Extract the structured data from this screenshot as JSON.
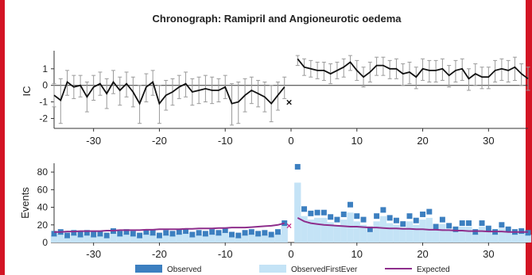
{
  "chart_data": [
    {
      "type": "line",
      "title": "Chronograph: Ramipril and Angioneurotic oedema",
      "ylabel": "IC",
      "xlim": [
        -36,
        36
      ],
      "ylim": [
        -2.6,
        1.9
      ],
      "yticks": [
        1,
        0,
        -1,
        -2
      ],
      "xticks": [
        -30,
        -20,
        -10,
        0,
        10,
        20,
        30
      ],
      "grid": false,
      "error_bars": true,
      "markers": [
        {
          "x": -0.3,
          "y": -1.0,
          "symbol": "×"
        }
      ],
      "series": [
        {
          "x": [
            -36,
            -35,
            -34,
            -33,
            -32,
            -31,
            -30,
            -29,
            -28,
            -27,
            -26,
            -25,
            -24,
            -23,
            -22,
            -21,
            -20,
            -19,
            -18,
            -17,
            -16,
            -15,
            -14,
            -13,
            -12,
            -11,
            -10,
            -9,
            -8,
            -7,
            -6,
            -5,
            -4,
            -3,
            -2,
            -1
          ],
          "values": [
            -0.6,
            -0.9,
            0.2,
            -0.1,
            0.0,
            -0.7,
            -0.1,
            0.1,
            -0.5,
            0.2,
            -0.3,
            0.1,
            -0.4,
            -1.1,
            -0.1,
            0.2,
            -1.1,
            -0.6,
            -0.4,
            -0.1,
            0.1,
            -0.4,
            -0.3,
            -0.2,
            -0.3,
            -0.3,
            -0.1,
            -1.1,
            -1.0,
            -0.6,
            -0.3,
            -0.5,
            -0.7,
            -1.1,
            -0.6,
            -0.1
          ],
          "lower": [
            -1.3,
            -2.3,
            -0.6,
            -0.8,
            -0.7,
            -1.6,
            -0.9,
            -0.6,
            -1.4,
            -0.5,
            -1.2,
            -0.7,
            -1.3,
            -2.3,
            -1.0,
            -0.6,
            -2.3,
            -1.5,
            -1.2,
            -0.8,
            -0.7,
            -1.2,
            -1.1,
            -1.0,
            -1.1,
            -1.0,
            -0.8,
            -2.4,
            -2.3,
            -1.6,
            -1.1,
            -1.3,
            -1.6,
            -2.2,
            -1.5,
            -0.8
          ],
          "upper": [
            0.1,
            0.4,
            0.9,
            0.6,
            0.6,
            0.2,
            0.6,
            0.8,
            0.4,
            0.9,
            0.5,
            0.8,
            0.5,
            0.0,
            0.7,
            0.9,
            0.0,
            0.3,
            0.4,
            0.6,
            0.8,
            0.4,
            0.5,
            0.6,
            0.5,
            0.4,
            0.6,
            0.1,
            0.2,
            0.4,
            0.5,
            0.3,
            0.2,
            0.0,
            0.2,
            0.5
          ]
        },
        {
          "x": [
            1,
            2,
            3,
            4,
            5,
            6,
            7,
            8,
            9,
            10,
            11,
            12,
            13,
            14,
            15,
            16,
            17,
            18,
            19,
            20,
            21,
            22,
            23,
            24,
            25,
            26,
            27,
            28,
            29,
            30,
            31,
            32,
            33,
            34,
            35,
            36
          ],
          "values": [
            1.6,
            1.1,
            1.0,
            0.9,
            0.9,
            0.7,
            0.9,
            1.1,
            1.4,
            0.9,
            0.5,
            0.8,
            1.2,
            1.2,
            1.0,
            1.0,
            0.7,
            0.8,
            0.5,
            1.0,
            0.9,
            0.9,
            1.0,
            0.6,
            0.9,
            1.0,
            0.4,
            0.7,
            0.5,
            0.5,
            0.9,
            1.0,
            0.9,
            1.1,
            0.7,
            0.4
          ],
          "lower": [
            1.2,
            0.6,
            0.5,
            0.4,
            0.3,
            0.1,
            0.4,
            0.5,
            0.9,
            0.3,
            -0.1,
            0.2,
            0.6,
            0.6,
            0.4,
            0.4,
            0.0,
            0.1,
            -0.2,
            0.3,
            0.2,
            0.2,
            0.3,
            -0.1,
            0.2,
            0.3,
            -0.3,
            0.0,
            -0.2,
            -0.2,
            0.2,
            0.3,
            0.2,
            0.3,
            0.0,
            -0.3
          ],
          "upper": [
            1.8,
            1.6,
            1.5,
            1.4,
            1.4,
            1.3,
            1.4,
            1.6,
            1.8,
            1.5,
            1.1,
            1.4,
            1.7,
            1.7,
            1.5,
            1.6,
            1.3,
            1.4,
            1.1,
            1.6,
            1.5,
            1.5,
            1.6,
            1.2,
            1.5,
            1.6,
            1.0,
            1.3,
            1.1,
            1.1,
            1.5,
            1.6,
            1.5,
            1.7,
            1.3,
            1.1
          ]
        }
      ]
    },
    {
      "type": "bar",
      "ylabel": "Events",
      "xlim": [
        -36,
        36
      ],
      "ylim": [
        0,
        90
      ],
      "yticks": [
        0,
        20,
        40,
        60,
        80
      ],
      "xticks": [
        -30,
        -20,
        -10,
        0,
        10,
        20,
        30
      ],
      "grid": false,
      "legend_position": "bottom",
      "markers": [
        {
          "x": -0.3,
          "y": 20,
          "symbol": "×"
        }
      ],
      "x": [
        -36,
        -35,
        -34,
        -33,
        -32,
        -31,
        -30,
        -29,
        -28,
        -27,
        -26,
        -25,
        -24,
        -23,
        -22,
        -21,
        -20,
        -19,
        -18,
        -17,
        -16,
        -15,
        -14,
        -13,
        -12,
        -11,
        -10,
        -9,
        -8,
        -7,
        -6,
        -5,
        -4,
        -3,
        -2,
        -1,
        1,
        2,
        3,
        4,
        5,
        6,
        7,
        8,
        9,
        10,
        11,
        12,
        13,
        14,
        15,
        16,
        17,
        18,
        19,
        20,
        21,
        22,
        23,
        24,
        25,
        26,
        27,
        28,
        29,
        30,
        31,
        32,
        33,
        34,
        35,
        36
      ],
      "series": [
        {
          "name": "Observed",
          "color": "#3c7fc0",
          "values": [
            10,
            12,
            8,
            11,
            9,
            11,
            9,
            10,
            8,
            13,
            10,
            12,
            10,
            8,
            12,
            11,
            8,
            11,
            10,
            12,
            13,
            9,
            11,
            10,
            12,
            11,
            14,
            9,
            8,
            11,
            12,
            10,
            11,
            9,
            12,
            22,
            86,
            38,
            33,
            34,
            34,
            29,
            26,
            32,
            43,
            30,
            26,
            15,
            30,
            37,
            28,
            25,
            21,
            30,
            25,
            32,
            35,
            18,
            26,
            19,
            15,
            22,
            22,
            12,
            22,
            16,
            12,
            20,
            15,
            12,
            13,
            11
          ]
        },
        {
          "name": "ObservedFirstEver",
          "color": "#c4e3f6",
          "values": [
            8,
            10,
            6,
            9,
            7,
            9,
            7,
            8,
            6,
            11,
            8,
            10,
            8,
            6,
            10,
            9,
            6,
            9,
            8,
            10,
            11,
            7,
            9,
            8,
            10,
            9,
            12,
            7,
            6,
            9,
            10,
            8,
            9,
            7,
            10,
            19,
            68,
            30,
            26,
            28,
            28,
            23,
            20,
            26,
            34,
            24,
            20,
            12,
            24,
            30,
            22,
            20,
            17,
            24,
            20,
            26,
            28,
            14,
            21,
            15,
            12,
            18,
            18,
            10,
            18,
            13,
            10,
            16,
            12,
            10,
            11,
            9
          ]
        },
        {
          "name": "Expected",
          "color": "#8e2e8c",
          "values": [
            12,
            12,
            12.5,
            12.5,
            13,
            13,
            13,
            13,
            13.5,
            13.5,
            14,
            14,
            14,
            14,
            14.5,
            14.5,
            15,
            15,
            15,
            15,
            15.5,
            15.5,
            16,
            16,
            16,
            16.5,
            16.5,
            17,
            17,
            17,
            17.5,
            18,
            18.5,
            19,
            20,
            22,
            28,
            24,
            22,
            21,
            20,
            19.5,
            19,
            18.5,
            18,
            18,
            17.5,
            17,
            17,
            16.5,
            16,
            16,
            15.5,
            15.5,
            15,
            15,
            14.5,
            14.5,
            14,
            14,
            13.5,
            13.5,
            13,
            13,
            13,
            12.5,
            12.5,
            12.5,
            12,
            12,
            12,
            12
          ]
        }
      ]
    }
  ]
}
